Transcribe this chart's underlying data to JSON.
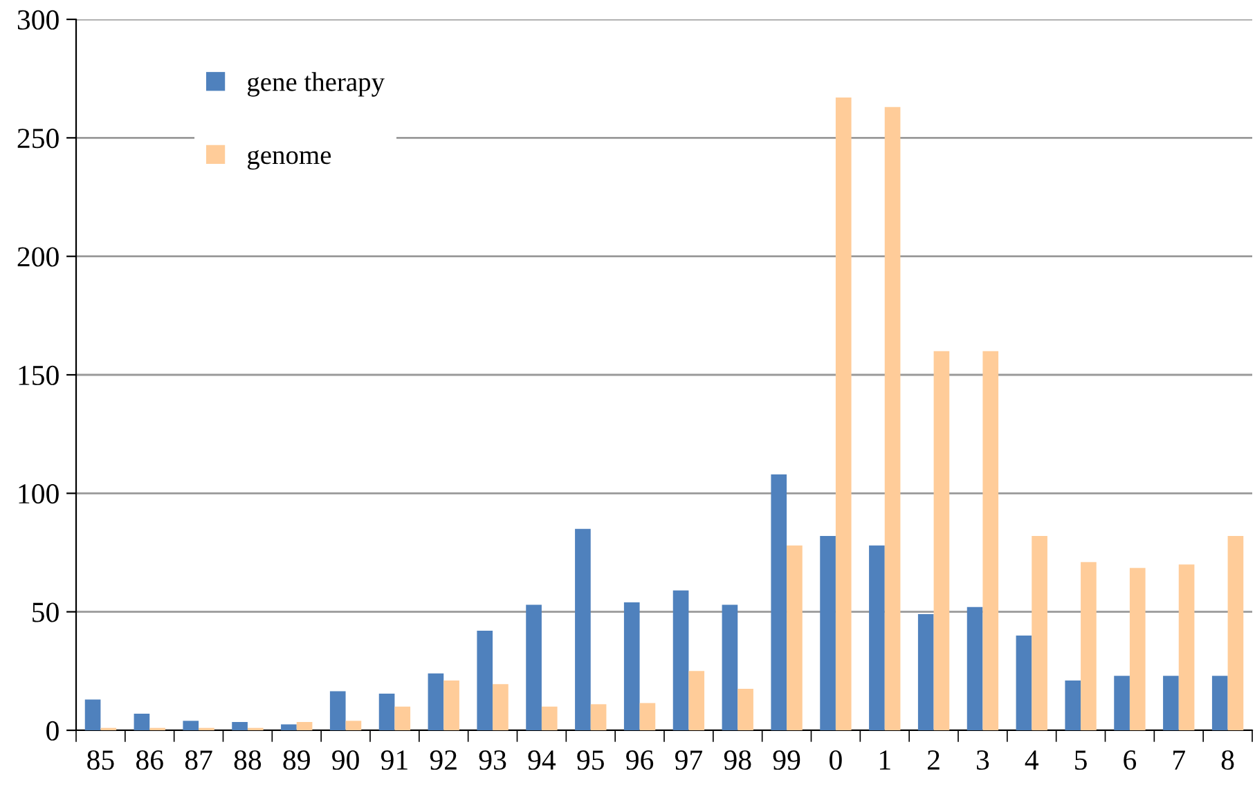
{
  "chart_data": {
    "type": "bar",
    "categories": [
      "85",
      "86",
      "87",
      "88",
      "89",
      "90",
      "91",
      "92",
      "93",
      "94",
      "95",
      "96",
      "97",
      "98",
      "99",
      "0",
      "1",
      "2",
      "3",
      "4",
      "5",
      "6",
      "7",
      "8"
    ],
    "series": [
      {
        "name": "gene therapy",
        "color": "#4f81bd",
        "values": [
          13,
          7,
          4,
          3.5,
          2.5,
          16.5,
          15.5,
          24,
          42,
          53,
          85,
          54,
          59,
          53,
          108,
          82,
          78,
          49,
          52,
          40,
          21,
          23,
          23,
          23
        ]
      },
      {
        "name": "genome",
        "color": "#ffcc99",
        "values": [
          1,
          1,
          1,
          1,
          3.5,
          4,
          10,
          21,
          19.5,
          10,
          11,
          11.5,
          25,
          17.5,
          78,
          267,
          263,
          160,
          160,
          82,
          71,
          68.5,
          70,
          82
        ]
      }
    ],
    "ylim": [
      0,
      300
    ],
    "yticks": [
      0,
      50,
      100,
      150,
      200,
      250,
      300
    ],
    "grid": "y",
    "legend": "top left"
  }
}
